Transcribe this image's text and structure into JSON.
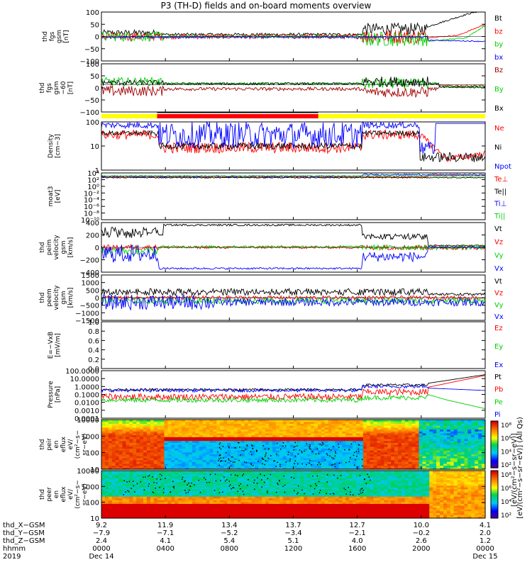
{
  "figure": {
    "title": "P3 (TH-D) fields and on-board moments overview"
  },
  "colors": {
    "black": "#000000",
    "red": "#ff0000",
    "green": "#00d000",
    "blue": "#0000ff",
    "darkred": "#a00000",
    "yellow": "#ffff00"
  },
  "chart_data": [
    {
      "type": "line",
      "id": "fgs",
      "ylabel_lines": [
        "thd",
        "fgs",
        "gsm",
        "[nT]"
      ],
      "ylim": [
        -100,
        100
      ],
      "yticks": [
        "100",
        "50",
        "0",
        "−50",
        "−100"
      ],
      "series": [
        {
          "name": "Bt",
          "color": "black"
        },
        {
          "name": "bz",
          "color": "red"
        },
        {
          "name": "by",
          "color": "green"
        },
        {
          "name": "bx",
          "color": "blue"
        }
      ]
    },
    {
      "type": "line",
      "id": "fgs-gse",
      "ylabel_lines": [
        "thd",
        "fgs",
        "gsm",
        "−60",
        "[nT]"
      ],
      "ylim": [
        -130,
        100
      ],
      "yticks": [
        "100",
        "50",
        "0",
        "−50",
        "−100"
      ],
      "series": [
        {
          "name": "Bz",
          "color": "darkred"
        },
        {
          "name": "By",
          "color": "green"
        },
        {
          "name": "Bx",
          "color": "black"
        }
      ]
    },
    {
      "type": "line",
      "id": "density",
      "ylabel_lines": [
        "Density",
        "[cm−3]"
      ],
      "scale": "log",
      "ylim": [
        0.1,
        100
      ],
      "yticks": [
        "100",
        "10",
        "1"
      ],
      "series": [
        {
          "name": "Ne",
          "color": "red"
        },
        {
          "name": "Ni",
          "color": "black"
        },
        {
          "name": "Npot",
          "color": "blue"
        }
      ]
    },
    {
      "type": "line",
      "id": "temperature",
      "ylabel_lines": [
        "moat3",
        "[eV]"
      ],
      "scale": "log",
      "yticks": [
        "10⁴",
        "10²",
        "10⁰",
        "10⁻²",
        "10⁻⁴",
        "10⁻⁶",
        "10⁻⁸",
        "10⁻¹⁰"
      ],
      "series": [
        {
          "name": "Te⊥",
          "color": "red"
        },
        {
          "name": "Te||",
          "color": "black"
        },
        {
          "name": "Ti⊥",
          "color": "blue"
        },
        {
          "name": "Ti||",
          "color": "green"
        }
      ]
    },
    {
      "type": "line",
      "id": "peim-velocity",
      "ylabel_lines": [
        "thd",
        "peim",
        "velocity",
        "gsm",
        "[km/s]"
      ],
      "ylim": [
        -400,
        400
      ],
      "yticks": [
        "400",
        "200",
        "0",
        "−200",
        "−400"
      ],
      "series": [
        {
          "name": "Vt",
          "color": "black"
        },
        {
          "name": "Vz",
          "color": "red"
        },
        {
          "name": "Vy",
          "color": "green"
        },
        {
          "name": "Vx",
          "color": "blue"
        }
      ]
    },
    {
      "type": "line",
      "id": "peem-velocity",
      "ylabel_lines": [
        "thd",
        "peem",
        "velocity",
        "gsm",
        "[km/s]"
      ],
      "ylim": [
        -1500,
        1500
      ],
      "yticks": [
        "1500",
        "1000",
        "500",
        "0",
        "−500",
        "−1000",
        "−1500"
      ],
      "series": [
        {
          "name": "Vt",
          "color": "black"
        },
        {
          "name": "Vz",
          "color": "red"
        },
        {
          "name": "Vy",
          "color": "green"
        },
        {
          "name": "Vx",
          "color": "blue"
        }
      ]
    },
    {
      "type": "line",
      "id": "efield",
      "ylabel_lines": [
        "E=−VxB",
        "[mV/m]"
      ],
      "ylim": [
        0,
        1
      ],
      "yticks": [
        "1.0",
        "0.8",
        "0.6",
        "0.4",
        "0.2",
        "0.0"
      ],
      "series": [
        {
          "name": "Ez",
          "color": "red"
        },
        {
          "name": "Ey",
          "color": "green"
        },
        {
          "name": "Ex",
          "color": "blue"
        }
      ]
    },
    {
      "type": "line",
      "id": "pressure",
      "ylabel_lines": [
        "Pressure",
        "[nPa]"
      ],
      "scale": "log",
      "ylim": [
        0.0001,
        100
      ],
      "yticks": [
        "100.0000",
        "10.0000",
        "1.0000",
        "0.1000",
        "0.0100",
        "0.0010",
        "0.0001"
      ],
      "series": [
        {
          "name": "Pt",
          "color": "black"
        },
        {
          "name": "Pb",
          "color": "red"
        },
        {
          "name": "Pe",
          "color": "green"
        },
        {
          "name": "Pi",
          "color": "blue"
        }
      ]
    },
    {
      "type": "heatmap",
      "id": "peir-spectrogram",
      "ylabel_lines": [
        "thd",
        "peir",
        "en",
        "eflux",
        "eV/",
        "(cm²−s−",
        "sr−eV)"
      ],
      "scale": "log",
      "ylim": [
        5,
        30000
      ],
      "yticks": [
        "10000",
        "1000",
        "100",
        "10"
      ]
    },
    {
      "type": "heatmap",
      "id": "peer-spectrogram",
      "ylabel_lines": [
        "thd",
        "peer",
        "en",
        "eflux",
        "eV/",
        "(cm²−s−",
        "sr−eV)"
      ],
      "scale": "log",
      "ylim": [
        5,
        30000
      ],
      "yticks": [
        "10000",
        "1000",
        "100",
        "10"
      ]
    }
  ],
  "colorbar": {
    "label": "[eV/(cm²−s−sr−eV)] (All Qs)",
    "label2": "[eV/(cm²−s−sr−eV)]",
    "ticks_top": [
      "10⁸",
      "10⁶",
      "10⁴",
      "10²"
    ],
    "ticks_bottom": [
      "10⁸",
      "10⁶",
      "10⁴",
      "10²"
    ]
  },
  "xaxis": {
    "row_labels": [
      "thd_X−GSM",
      "thd_Y−GSM",
      "thd_Z−GSM",
      "hhmm",
      "2019"
    ],
    "columns": [
      {
        "x": "9.2",
        "y": "−7.9",
        "z": "2.4",
        "hhmm": "0000",
        "date": "Dec 14"
      },
      {
        "x": "11.9",
        "y": "−7.1",
        "z": "4.1",
        "hhmm": "0400",
        "date": ""
      },
      {
        "x": "13.4",
        "y": "−5.2",
        "z": "5.4",
        "hhmm": "0800",
        "date": ""
      },
      {
        "x": "13.7",
        "y": "−3.4",
        "z": "5.1",
        "hhmm": "1200",
        "date": ""
      },
      {
        "x": "12.7",
        "y": "−2.1",
        "z": "4.0",
        "hhmm": "1600",
        "date": ""
      },
      {
        "x": "10.0",
        "y": "−0.2",
        "z": "2.6",
        "hhmm": "2000",
        "date": ""
      },
      {
        "x": "4.1",
        "y": "2.0",
        "z": "1.2",
        "hhmm": "0000",
        "date": "Dec 15"
      }
    ]
  }
}
